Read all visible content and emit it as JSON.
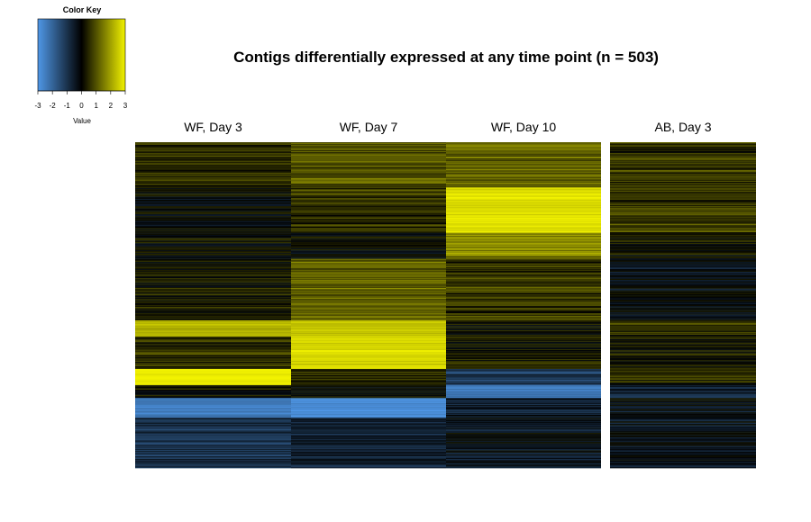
{
  "chart_data": {
    "type": "heatmap",
    "title": "Contigs differentially expressed at any time point (n = 503)",
    "columns": [
      "WF, Day 3",
      "WF, Day 7",
      "WF, Day 10",
      "AB, Day 3"
    ],
    "n_rows": 503,
    "color_key": {
      "title": "Color Key",
      "xlabel": "Value",
      "range": [
        -3,
        3
      ],
      "ticks": [
        "-3",
        "-2",
        "-1",
        "0",
        "1",
        "2",
        "3"
      ],
      "colors": {
        "low": "#4f97e6",
        "mid": "#000000",
        "high": "#f2f200"
      }
    },
    "approx_row_blocks": [
      {
        "from": 0,
        "to": 70,
        "values": [
          0.6,
          1.0,
          1.2,
          0.6
        ]
      },
      {
        "from": 70,
        "to": 140,
        "values": [
          -0.1,
          0.7,
          2.8,
          0.7
        ]
      },
      {
        "from": 140,
        "to": 180,
        "values": [
          0.0,
          0.0,
          1.6,
          0.2
        ]
      },
      {
        "from": 180,
        "to": 275,
        "values": [
          0.3,
          1.2,
          0.7,
          -0.2
        ]
      },
      {
        "from": 275,
        "to": 300,
        "values": [
          2.2,
          2.5,
          0.2,
          0.6
        ]
      },
      {
        "from": 300,
        "to": 350,
        "values": [
          0.5,
          2.7,
          0.3,
          0.3
        ]
      },
      {
        "from": 350,
        "to": 375,
        "values": [
          3.0,
          0.6,
          -1.2,
          0.5
        ]
      },
      {
        "from": 375,
        "to": 395,
        "values": [
          0.2,
          0.0,
          -2.4,
          -0.6
        ]
      },
      {
        "from": 395,
        "to": 425,
        "values": [
          -2.5,
          -2.8,
          -0.6,
          -0.3
        ]
      },
      {
        "from": 425,
        "to": 503,
        "values": [
          -1.0,
          -0.7,
          -0.3,
          -0.3
        ]
      }
    ]
  }
}
